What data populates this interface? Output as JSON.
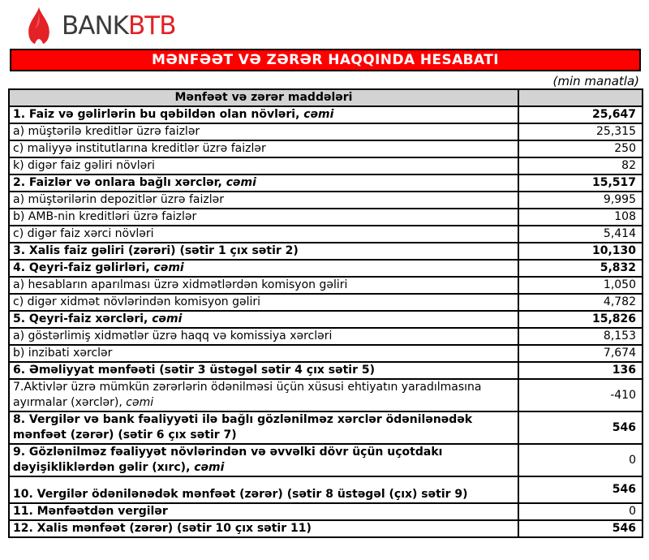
{
  "logo": {
    "bank_text": "BANK",
    "btb_text": "BTB",
    "flame_color": "#e32127"
  },
  "banner": {
    "title": "MƏNFƏƏT VƏ ZƏRƏR HAQQINDA HESABATI",
    "bg_color": "#ff0000",
    "text_color": "#ffffff"
  },
  "unit_note": "(min manatla)",
  "table": {
    "header_label": "Mənfəət və zərər maddələri",
    "header_bg": "#d3d3d3",
    "rows": [
      {
        "label": "1. Faiz və gəlirlərin bu qəbildən olan növləri,",
        "suffix": "cəmi",
        "value": "25,647",
        "label_bold": true,
        "value_bold": true
      },
      {
        "label": "a) müştərilə kreditlər üzrə faizlər",
        "suffix": "",
        "value": "25,315",
        "label_bold": false,
        "value_bold": false
      },
      {
        "label": "c) maliyyə institutlarına kreditlər üzrə faizlər",
        "suffix": "",
        "value": "250",
        "label_bold": false,
        "value_bold": false
      },
      {
        "label": "k) digər faiz gəliri növləri",
        "suffix": "",
        "value": "82",
        "label_bold": false,
        "value_bold": false
      },
      {
        "label": "2. Faizlər və onlara bağlı xərclər,",
        "suffix": "cəmi",
        "value": "15,517",
        "label_bold": true,
        "value_bold": true
      },
      {
        "label": "a) müştərilərin depozitlər üzrə faizlər",
        "suffix": "",
        "value": "9,995",
        "label_bold": false,
        "value_bold": false
      },
      {
        "label": "b) AMB-nin kreditləri üzrə faizlər",
        "suffix": "",
        "value": "108",
        "label_bold": false,
        "value_bold": false
      },
      {
        "label": "c) digər faiz xərci növləri",
        "suffix": "",
        "value": "5,414",
        "label_bold": false,
        "value_bold": false
      },
      {
        "label": "3. Xalis faiz gəliri (zərəri) (sətir 1 çıx sətir 2)",
        "suffix": "",
        "value": "10,130",
        "label_bold": true,
        "value_bold": true
      },
      {
        "label": "4. Qeyri-faiz gəlirləri,",
        "suffix": "cəmi",
        "value": "5,832",
        "label_bold": true,
        "value_bold": true
      },
      {
        "label": "a) hesabların aparılması üzrə xidmətlərdən komisyon gəliri",
        "suffix": "",
        "value": "1,050",
        "label_bold": false,
        "value_bold": false
      },
      {
        "label": "c) digər xidmət növlərindən komisyon gəliri",
        "suffix": "",
        "value": "4,782",
        "label_bold": false,
        "value_bold": false
      },
      {
        "label": "5. Qeyri-faiz xərcləri,",
        "suffix": "cəmi",
        "value": "15,826",
        "label_bold": true,
        "value_bold": true
      },
      {
        "label": "a) göstərlimiş xidmətlər üzrə haqq və komissiya xərcləri",
        "suffix": "",
        "value": "8,153",
        "label_bold": false,
        "value_bold": false
      },
      {
        "label": "b) inzibati xərclər",
        "suffix": "",
        "value": "7,674",
        "label_bold": false,
        "value_bold": false
      },
      {
        "label": "6. Əməliyyat mənfəəti (sətir 3 üstəgəl sətir 4 çıx sətir 5)",
        "suffix": "",
        "value": "136",
        "label_bold": true,
        "value_bold": true
      },
      {
        "label": "7.Aktivlər üzrə mümkün zərərlərin ödənilməsi üçün xüsusi ehtiyatın yaradılmasına ayırmalar (xərclər),",
        "suffix": "cəmi",
        "value": "-410",
        "label_bold": false,
        "value_bold": false
      },
      {
        "label": "8. Vergilər və bank fəaliyyəti ilə bağlı gözlənilməz xərclər ödənilənədək mənfəət (zərər) (sətir 6 çıx sətir 7)",
        "suffix": "",
        "value": "546",
        "label_bold": true,
        "value_bold": true
      },
      {
        "label": "9. Gözlənilməz fəaliyyət növlərindən və əvvəlki dövr üçün uçotdakı dəyişikliklərdən gəlir (xırc),",
        "suffix": "cəmi",
        "value": "0",
        "label_bold": true,
        "value_bold": false
      },
      {
        "label": "10. Vergilər ödənilənədək mənfəət (zərər) (sətir 8 üstəgəl (çıx) sətir 9)",
        "suffix": "",
        "value": "546",
        "label_bold": true,
        "value_bold": true,
        "tall": true
      },
      {
        "label": "11. Mənfəətdən vergilər",
        "suffix": "",
        "value": "0",
        "label_bold": true,
        "value_bold": false
      },
      {
        "label": "12. Xalis mənfəət (zərər) (sətir 10 çıx sətir 11)",
        "suffix": "",
        "value": "546",
        "label_bold": true,
        "value_bold": true
      }
    ]
  }
}
